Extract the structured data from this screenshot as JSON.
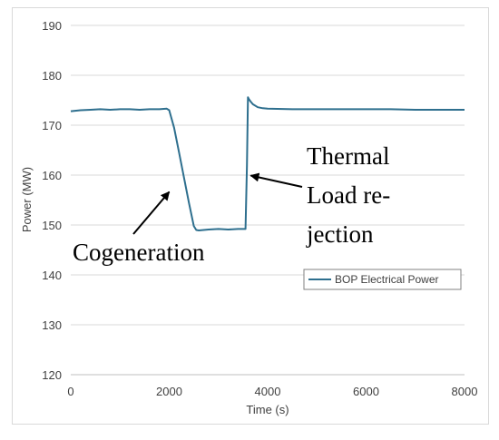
{
  "chart_data": {
    "type": "line",
    "title": "",
    "xlabel": "Time (s)",
    "ylabel": "Power (MW)",
    "xlim": [
      0,
      8000
    ],
    "ylim": [
      120,
      190
    ],
    "xticks": [
      0,
      2000,
      4000,
      6000,
      8000
    ],
    "yticks": [
      120,
      130,
      140,
      150,
      160,
      170,
      180,
      190
    ],
    "grid": "horizontal",
    "legend_position": "right",
    "colors": {
      "series": "#2e6f8e",
      "grid": "#d9d9d9",
      "axis": "#bfbfbf"
    },
    "series": [
      {
        "name": "BOP Electrical Power",
        "x": [
          0,
          200,
          400,
          600,
          800,
          1000,
          1200,
          1400,
          1600,
          1800,
          1950,
          2000,
          2100,
          2200,
          2300,
          2400,
          2500,
          2550,
          2600,
          2700,
          2800,
          3000,
          3200,
          3400,
          3550,
          3580,
          3600,
          3620,
          3650,
          3700,
          3800,
          3900,
          4000,
          4500,
          5000,
          5500,
          6000,
          6500,
          7000,
          7500,
          8000
        ],
        "y": [
          172.8,
          173.0,
          173.1,
          173.2,
          173.1,
          173.2,
          173.2,
          173.1,
          173.2,
          173.2,
          173.3,
          173.0,
          169.5,
          164.5,
          159.5,
          154.5,
          149.8,
          149.0,
          148.9,
          149.0,
          149.1,
          149.2,
          149.1,
          149.2,
          149.2,
          162.0,
          175.6,
          175.2,
          174.8,
          174.2,
          173.6,
          173.4,
          173.3,
          173.2,
          173.2,
          173.2,
          173.2,
          173.2,
          173.1,
          173.1,
          173.1
        ]
      }
    ],
    "annotations": [
      {
        "lines": [
          "Cogeneration"
        ],
        "target": [
          2000,
          163
        ]
      },
      {
        "lines": [
          "Thermal",
          "Load re-",
          "jection"
        ],
        "target": [
          3620,
          163
        ]
      }
    ]
  }
}
